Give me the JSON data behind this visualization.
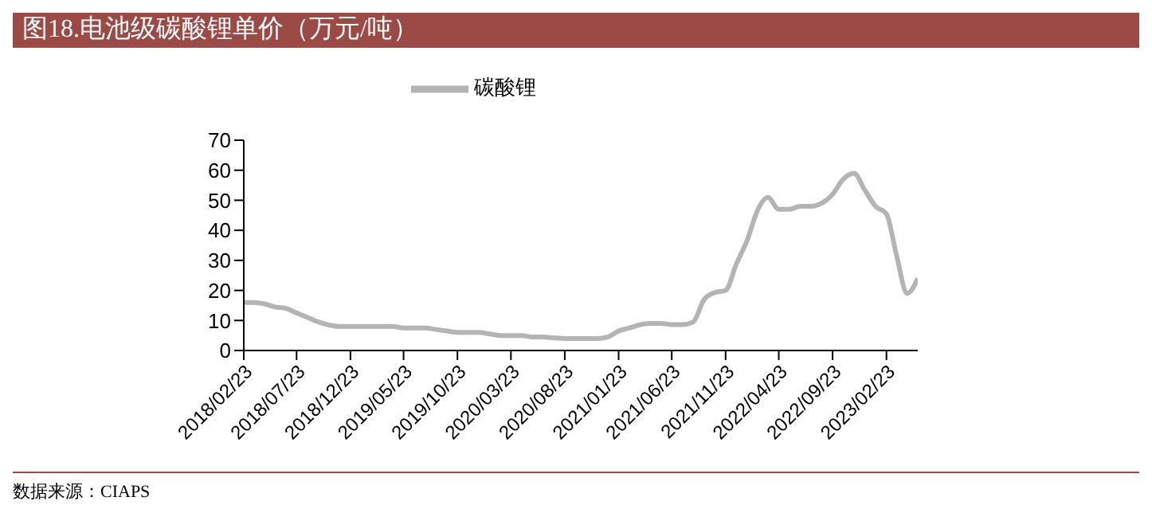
{
  "chart_data": {
    "type": "line",
    "title": "图18.电池级碳酸锂单价（万元/吨）",
    "x": [
      "2018-02-23",
      "2018-03-23",
      "2018-04-23",
      "2018-05-23",
      "2018-06-23",
      "2018-07-23",
      "2018-08-23",
      "2018-09-23",
      "2018-10-23",
      "2018-11-23",
      "2018-12-23",
      "2019-01-23",
      "2019-02-23",
      "2019-03-23",
      "2019-04-23",
      "2019-05-23",
      "2019-06-23",
      "2019-07-23",
      "2019-08-23",
      "2019-09-23",
      "2019-10-23",
      "2019-11-23",
      "2019-12-23",
      "2020-01-23",
      "2020-02-23",
      "2020-03-23",
      "2020-04-23",
      "2020-05-23",
      "2020-06-23",
      "2020-07-23",
      "2020-08-23",
      "2020-09-23",
      "2020-10-23",
      "2020-11-23",
      "2020-12-23",
      "2021-01-23",
      "2021-02-23",
      "2021-03-23",
      "2021-04-23",
      "2021-05-23",
      "2021-06-23",
      "2021-07-23",
      "2021-08-23",
      "2021-09-23",
      "2021-10-23",
      "2021-11-23",
      "2021-12-23",
      "2022-01-23",
      "2022-02-23",
      "2022-03-23",
      "2022-04-23",
      "2022-05-23",
      "2022-06-23",
      "2022-07-23",
      "2022-08-23",
      "2022-09-23",
      "2022-10-23",
      "2022-11-23",
      "2022-12-23",
      "2023-01-23",
      "2023-02-23",
      "2023-03-23",
      "2023-04-23",
      "2023-05-23"
    ],
    "series": [
      {
        "name": "碳酸锂",
        "color": "#b4b4b4",
        "values": [
          16,
          16,
          15.5,
          14.5,
          14,
          12.5,
          11,
          9.5,
          8.5,
          8,
          8,
          8,
          8,
          8,
          8,
          7.5,
          7.5,
          7.5,
          7,
          6.5,
          6,
          6,
          6,
          5.5,
          5,
          5,
          5,
          4.5,
          4.5,
          4.2,
          4,
          4,
          4,
          4,
          4.5,
          6.5,
          7.5,
          8.5,
          9,
          9,
          8.6,
          8.6,
          9.5,
          17,
          19.3,
          20,
          28.6,
          36.6,
          47,
          51,
          47,
          47,
          48,
          48,
          49,
          52,
          57,
          59,
          53.5,
          48,
          45.5,
          32,
          19,
          24
        ]
      }
    ],
    "xlim": [
      "2018-02-23",
      "2023-05-23"
    ],
    "xticks": [
      {
        "value": "2018-02-23",
        "label": "2018/02/23"
      },
      {
        "value": "2018-07-23",
        "label": "2018/07/23"
      },
      {
        "value": "2018-12-23",
        "label": "2018/12/23"
      },
      {
        "value": "2019-05-23",
        "label": "2019/05/23"
      },
      {
        "value": "2019-10-23",
        "label": "2019/10/23"
      },
      {
        "value": "2020-03-23",
        "label": "2020/03/23"
      },
      {
        "value": "2020-08-23",
        "label": "2020/08/23"
      },
      {
        "value": "2021-01-23",
        "label": "2021/01/23"
      },
      {
        "value": "2021-06-23",
        "label": "2021/06/23"
      },
      {
        "value": "2021-11-23",
        "label": "2021/11/23"
      },
      {
        "value": "2022-04-23",
        "label": "2022/04/23"
      },
      {
        "value": "2022-09-23",
        "label": "2022/09/23"
      },
      {
        "value": "2023-02-23",
        "label": "2023/02/23"
      }
    ],
    "ylim": [
      0,
      70
    ],
    "yticks": [
      0,
      10,
      20,
      30,
      40,
      50,
      60,
      70
    ],
    "legend": "top",
    "marker": "none",
    "line_style": "solid",
    "annotations": [
      "数据来源：CIAPS"
    ]
  }
}
